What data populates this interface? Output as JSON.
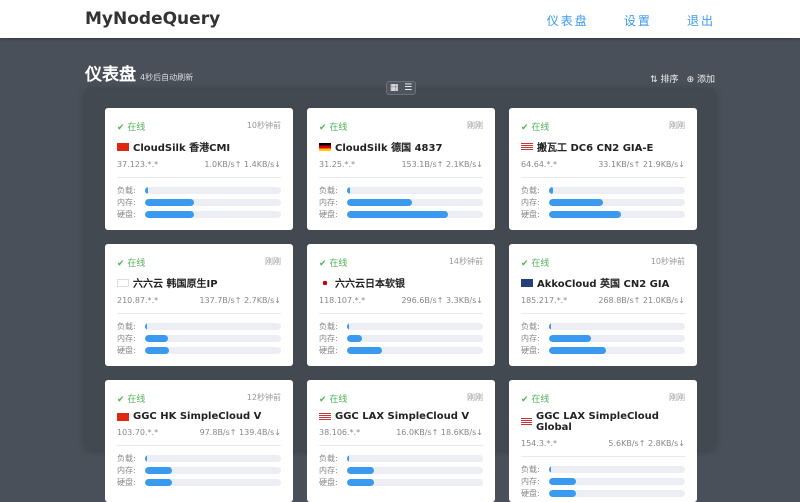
{
  "header": {
    "logo": "MyNodeQuery",
    "nav": [
      "仪表盘",
      "设置",
      "退出"
    ]
  },
  "page": {
    "title": "仪表盘",
    "subtitle": "4秒后自动刷新",
    "sort_label": "排序",
    "add_label": "添加"
  },
  "labels": {
    "load": "负载:",
    "mem": "内存:",
    "disk": "硬盘:"
  },
  "colors": {
    "accent": "#3a9af0",
    "online": "#52b35a"
  },
  "nodes": [
    {
      "status": "在线",
      "time": "10秒钟前",
      "flag": "hk",
      "name": "CloudSilk 香港CMI",
      "ip": "37.123.*.*",
      "traffic": "1.0KB/s↑ 1.4KB/s↓",
      "load": 2,
      "mem": 36,
      "disk": 36
    },
    {
      "status": "在线",
      "time": "刚刚",
      "flag": "de",
      "name": "CloudSilk 德国 4837",
      "ip": "31.25.*.*",
      "traffic": "153.1B/s↑ 2.1KB/s↓",
      "load": 2,
      "mem": 48,
      "disk": 74
    },
    {
      "status": "在线",
      "time": "刚刚",
      "flag": "us",
      "name": "搬瓦工 DC6 CN2 GIA-E",
      "ip": "64.64.*.*",
      "traffic": "33.1KB/s↑ 21.9KB/s↓",
      "load": 3,
      "mem": 40,
      "disk": 53
    },
    {
      "status": "在线",
      "time": "刚刚",
      "flag": "kr",
      "name": "六六云 韩国原生IP",
      "ip": "210.87.*.*",
      "traffic": "137.7B/s↑ 2.7KB/s↓",
      "load": 1,
      "mem": 17,
      "disk": 18
    },
    {
      "status": "在线",
      "time": "14秒钟前",
      "flag": "jp",
      "name": "六六云日本软银",
      "ip": "118.107.*.*",
      "traffic": "296.6B/s↑ 3.3KB/s↓",
      "load": 1,
      "mem": 11,
      "disk": 26
    },
    {
      "status": "在线",
      "time": "10秒钟前",
      "flag": "gb",
      "name": "AkkoCloud 英国 CN2 GIA",
      "ip": "185.217.*.*",
      "traffic": "268.8B/s↑ 21.0KB/s↓",
      "load": 1,
      "mem": 31,
      "disk": 42
    },
    {
      "status": "在线",
      "time": "12秒钟前",
      "flag": "hk",
      "name": "GGC HK SimpleCloud V",
      "ip": "103.70.*.*",
      "traffic": "97.8B/s↑ 139.4B/s↓",
      "load": 1,
      "mem": 20,
      "disk": 20
    },
    {
      "status": "在线",
      "time": "刚刚",
      "flag": "us",
      "name": "GGC LAX SimpleCloud V",
      "ip": "38.106.*.*",
      "traffic": "16.0KB/s↑ 18.6KB/s↓",
      "load": 1,
      "mem": 20,
      "disk": 20
    },
    {
      "status": "在线",
      "time": "刚刚",
      "flag": "us",
      "name": "GGC LAX SimpleCloud Global",
      "ip": "154.3.*.*",
      "traffic": "5.6KB/s↑ 2.8KB/s↓",
      "load": 1,
      "mem": 20,
      "disk": 20
    }
  ]
}
